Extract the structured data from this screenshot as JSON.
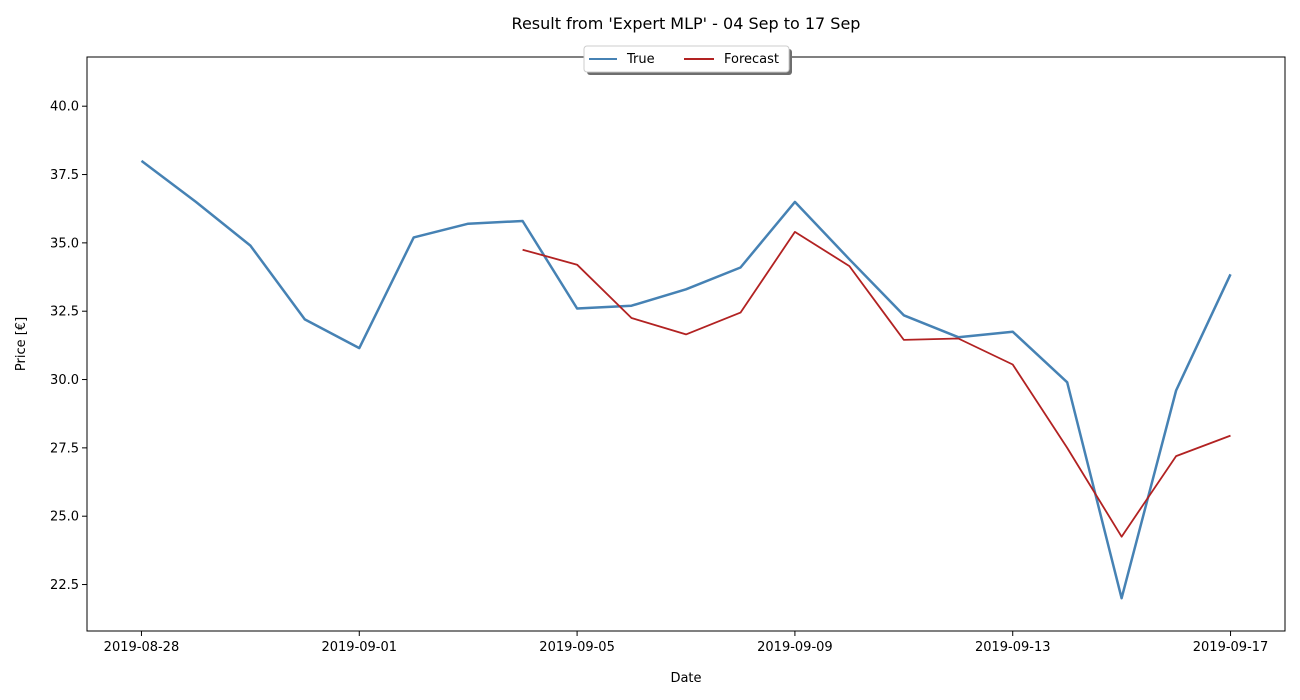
{
  "chart_data": {
    "type": "line",
    "title": "Result from 'Expert MLP' - 04 Sep to 17 Sep",
    "xlabel": "Date",
    "ylabel": "Price [€]",
    "x_ticks": [
      "2019-08-28",
      "2019-09-01",
      "2019-09-05",
      "2019-09-09",
      "2019-09-13",
      "2019-09-17"
    ],
    "y_ticks": [
      "22.5",
      "25.0",
      "27.5",
      "30.0",
      "32.5",
      "35.0",
      "37.5",
      "40.0"
    ],
    "xlim": [
      "2019-08-27",
      "2019-09-18"
    ],
    "ylim": [
      20.8,
      41.8
    ],
    "grid": false,
    "legend_position": "upper-center",
    "series": [
      {
        "name": "True",
        "color": "#4682b4",
        "x": [
          "2019-08-28",
          "2019-08-29",
          "2019-08-30",
          "2019-08-31",
          "2019-09-01",
          "2019-09-02",
          "2019-09-03",
          "2019-09-04",
          "2019-09-05",
          "2019-09-06",
          "2019-09-07",
          "2019-09-08",
          "2019-09-09",
          "2019-09-10",
          "2019-09-11",
          "2019-09-12",
          "2019-09-13",
          "2019-09-14",
          "2019-09-15",
          "2019-09-16",
          "2019-09-17"
        ],
        "values": [
          38.0,
          36.5,
          34.9,
          32.2,
          31.15,
          35.2,
          35.7,
          35.8,
          32.6,
          32.7,
          33.3,
          34.1,
          36.5,
          34.4,
          32.35,
          31.55,
          31.75,
          29.9,
          22.0,
          29.6,
          33.85
        ]
      },
      {
        "name": "Forecast",
        "color": "#b22222",
        "x": [
          "2019-09-04",
          "2019-09-05",
          "2019-09-06",
          "2019-09-07",
          "2019-09-08",
          "2019-09-09",
          "2019-09-10",
          "2019-09-11",
          "2019-09-12",
          "2019-09-13",
          "2019-09-14",
          "2019-09-15",
          "2019-09-16",
          "2019-09-17"
        ],
        "values": [
          34.75,
          34.2,
          32.25,
          31.65,
          32.45,
          35.4,
          34.15,
          31.45,
          31.5,
          30.55,
          27.5,
          24.25,
          27.2,
          27.95
        ]
      }
    ]
  }
}
